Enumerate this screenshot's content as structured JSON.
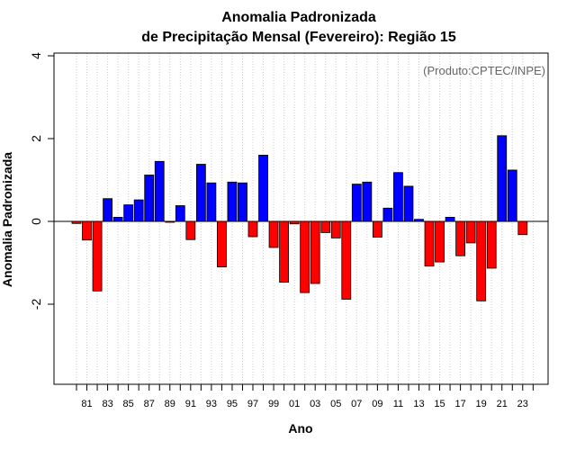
{
  "chart_data": {
    "type": "bar",
    "title": "Anomalia Padronizada",
    "subtitle": "de Precipitação Mensal (Fevereiro): Região 15",
    "xlabel": "Ano",
    "ylabel": "Anomalia Padronizada",
    "credit": "(Produto:CPTEC/INPE)",
    "ylim": [
      -4,
      4
    ],
    "yticks": [
      4,
      2,
      0,
      -2
    ],
    "ytick_labels": [
      "4",
      "2",
      "0",
      "-2"
    ],
    "grid": "vertical dotted",
    "positive_color": "#0000ff",
    "negative_color": "#ff0000",
    "categories": [
      "1980",
      "1981",
      "1982",
      "1983",
      "1984",
      "1985",
      "1986",
      "1987",
      "1988",
      "1989",
      "1990",
      "1991",
      "1992",
      "1993",
      "1994",
      "1995",
      "1996",
      "1997",
      "1998",
      "1999",
      "2000",
      "2001",
      "2002",
      "2003",
      "2004",
      "2005",
      "2006",
      "2007",
      "2008",
      "2009",
      "2010",
      "2011",
      "2012",
      "2013",
      "2014",
      "2015",
      "2016",
      "2017",
      "2018",
      "2019",
      "2020",
      "2021",
      "2022",
      "2023",
      "2024"
    ],
    "values": [
      -0.05,
      -0.45,
      -1.68,
      0.55,
      0.1,
      0.4,
      0.52,
      1.12,
      1.45,
      -0.02,
      0.38,
      -0.44,
      1.38,
      0.93,
      -1.1,
      0.95,
      0.93,
      -0.37,
      1.6,
      -0.63,
      -1.47,
      -0.06,
      -1.72,
      -1.5,
      -0.27,
      -0.4,
      -1.88,
      0.9,
      0.95,
      -0.38,
      0.32,
      1.18,
      0.85,
      0.05,
      -1.08,
      -0.98,
      0.1,
      -0.83,
      -0.52,
      -1.92,
      -1.13,
      2.07,
      1.24,
      -0.32,
      null
    ],
    "xtick_labels": [
      "",
      "81",
      "",
      "83",
      "",
      "85",
      "",
      "87",
      "",
      "89",
      "",
      "91",
      "",
      "93",
      "",
      "95",
      "",
      "97",
      "",
      "99",
      "",
      "01",
      "",
      "03",
      "",
      "05",
      "",
      "07",
      "",
      "09",
      "",
      "11",
      "",
      "13",
      "",
      "15",
      "",
      "17",
      "",
      "19",
      "",
      "21",
      "",
      "23",
      ""
    ]
  }
}
